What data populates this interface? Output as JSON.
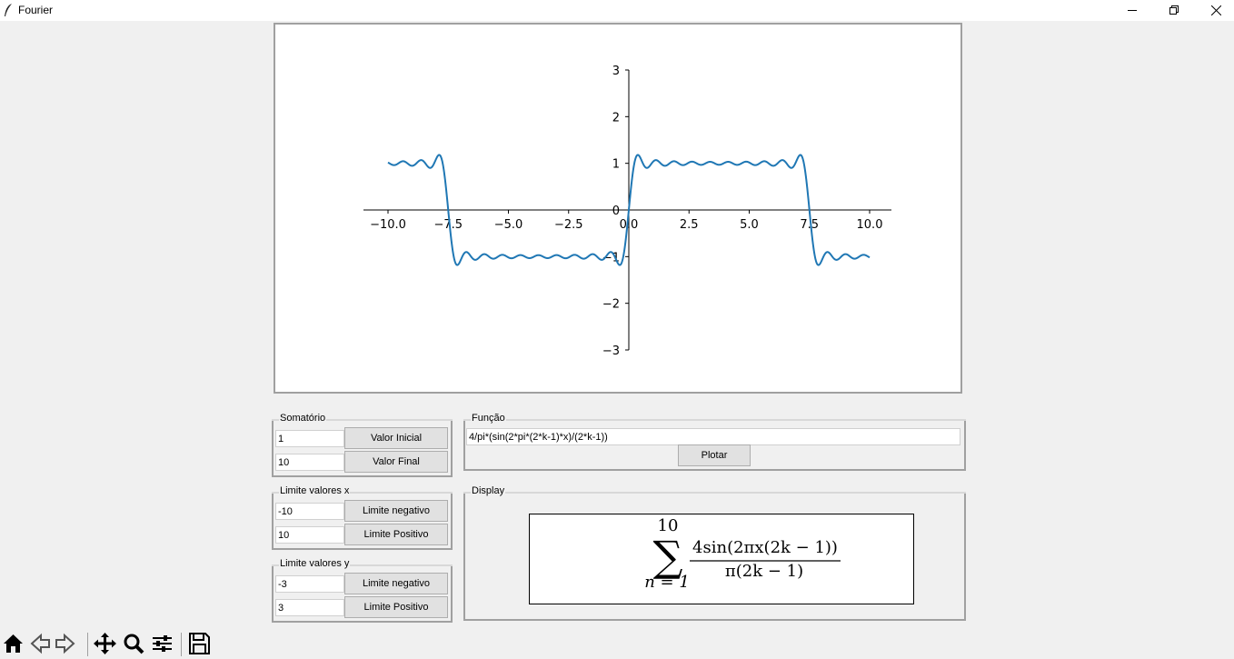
{
  "window": {
    "title": "Fourier"
  },
  "chart_data": {
    "type": "line",
    "function": "4/pi*(sin(2*pi*(2*k-1)*x)/(2*k-1))",
    "k_range": [
      1,
      10
    ],
    "xlim": [
      -10,
      10
    ],
    "ylim": [
      -3,
      3
    ],
    "x_ticks": [
      "−10.0",
      "−7.5",
      "−5.0",
      "−2.5",
      "0.0",
      "2.5",
      "5.0",
      "7.5",
      "10.0"
    ],
    "y_ticks": [
      "3",
      "2",
      "1",
      "0",
      "−1",
      "−2",
      "−3"
    ],
    "line_color": "#1f77b4",
    "spines": "centered at origin",
    "grid": false
  },
  "somatorio": {
    "title": "Somatório",
    "initial_value": "1",
    "initial_button": "Valor Inicial",
    "final_value": "10",
    "final_button": "Valor Final"
  },
  "funcao": {
    "title": "Função",
    "expression": "4/pi*(sin(2*pi*(2*k-1)*x)/(2*k-1))",
    "plot_button": "Plotar"
  },
  "limite_x": {
    "title": "Limite valores x",
    "negative_value": "-10",
    "negative_button": "Limite negativo",
    "positive_value": "10",
    "positive_button": "Limite Positivo"
  },
  "limite_y": {
    "title": "Limite valores y",
    "negative_value": "-3",
    "negative_button": "Limite negativo",
    "positive_value": "3",
    "positive_button": "Limite Positivo"
  },
  "display": {
    "title": "Display",
    "upper_limit": "10",
    "lower_limit": "n = 1",
    "numerator": "4sin(2πx(2k − 1))",
    "denominator": "π(2k − 1)"
  },
  "toolbar": {
    "icons": [
      "home-icon",
      "back-arrow-icon",
      "forward-arrow-icon",
      "pan-icon",
      "zoom-icon",
      "configure-subplots-icon",
      "save-icon"
    ]
  }
}
